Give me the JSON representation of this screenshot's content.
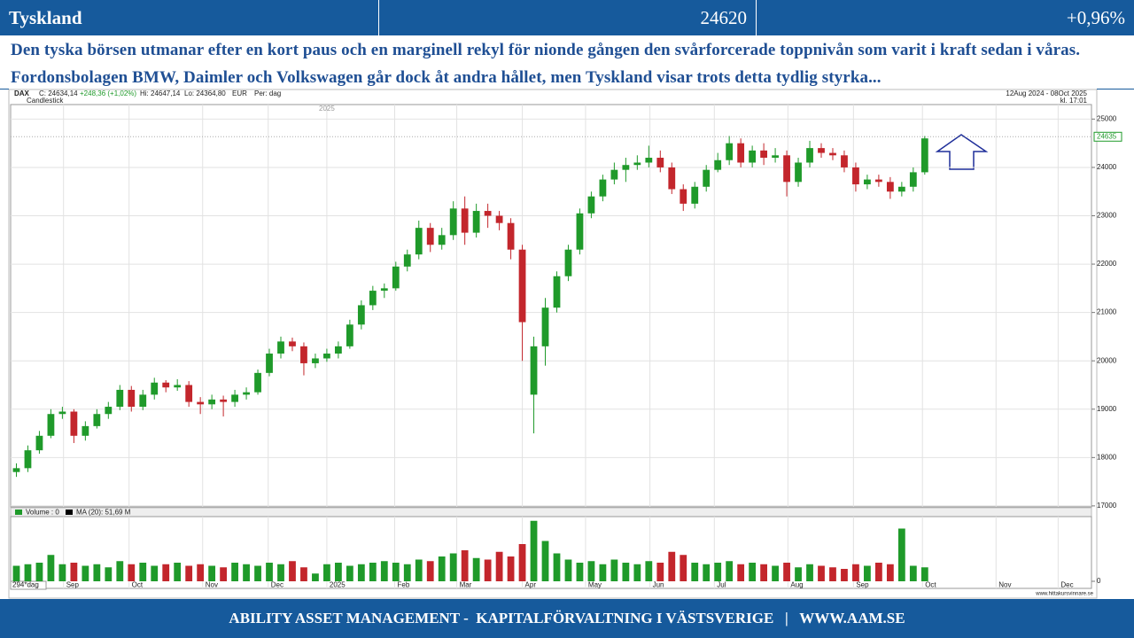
{
  "header": {
    "title": "Tyskland",
    "price": 24620,
    "change": "+0,96%"
  },
  "description": "Den tyska börsen utmanar efter en kort paus och en marginell rekyl för nionde gången den svårforcerade toppnivån som varit i kraft sedan i våras. Fordonsbolagen BMW, Daimler och Volkswagen går dock åt andra hållet, men Tyskland visar trots detta tydlig styrka...",
  "chart_data": {
    "type": "candlestick",
    "instrument": "DAX",
    "quote_close": "C: 24634,14",
    "quote_change": "+248,36 (+1,02%)",
    "quote_high": "Hi: 24647,14",
    "quote_low": "Lo: 24364,80",
    "currency": "EUR",
    "period": "Per: dag",
    "style": "Candlestick",
    "date_range": "12Aug 2024 - 08Oct 2025",
    "time": "kl. 17:01",
    "last_price": 24635,
    "bars_label": "294*dag",
    "source": "www.hittakursvinnare.se",
    "xlim": [
      -0.5,
      93.5
    ],
    "xticks": [
      {
        "value": 4.1,
        "label": "Sep"
      },
      {
        "value": 9.8,
        "label": "Oct"
      },
      {
        "value": 16.2,
        "label": "Nov"
      },
      {
        "value": 21.9,
        "label": "Dec"
      },
      {
        "value": 27.0,
        "label": "2025"
      },
      {
        "value": 32.9,
        "label": "Feb"
      },
      {
        "value": 38.3,
        "label": "Mar"
      },
      {
        "value": 44.0,
        "label": "Apr"
      },
      {
        "value": 49.5,
        "label": "May"
      },
      {
        "value": 55.1,
        "label": "Jun"
      },
      {
        "value": 60.7,
        "label": "Jul"
      },
      {
        "value": 67.1,
        "label": "Aug"
      },
      {
        "value": 72.8,
        "label": "Sep"
      },
      {
        "value": 78.8,
        "label": "Oct"
      },
      {
        "value": 85.2,
        "label": "Nov"
      },
      {
        "value": 90.6,
        "label": "Dec"
      }
    ],
    "ylim": [
      16980,
      25300
    ],
    "yticks": [
      17000,
      18000,
      19000,
      20000,
      21000,
      22000,
      23000,
      24000,
      25000
    ],
    "grid": true,
    "up_color": "#1f9a2a",
    "down_color": "#c3262c",
    "ohlc": {
      "open": [
        17700,
        17780,
        18150,
        18450,
        18900,
        18950,
        18450,
        18650,
        18900,
        19050,
        19400,
        19050,
        19300,
        19550,
        19450,
        19500,
        19150,
        19100,
        19200,
        19150,
        19300,
        19350,
        19750,
        20150,
        20400,
        20300,
        19950,
        20050,
        20150,
        20300,
        20750,
        21150,
        21450,
        21500,
        21950,
        22200,
        22750,
        22400,
        22600,
        23150,
        22650,
        23100,
        23000,
        22850,
        22300,
        19300,
        20300,
        21100,
        21750,
        22300,
        23050,
        23400,
        23750,
        23950,
        24050,
        24100,
        24200,
        24000,
        23550,
        23250,
        23600,
        23950,
        24150,
        24500,
        24100,
        24350,
        24200,
        24250,
        23700,
        24100,
        24400,
        24300,
        24250,
        24000,
        23650,
        23750,
        23700,
        23500,
        23600,
        23900
      ],
      "high": [
        17880,
        18250,
        18550,
        19000,
        19050,
        19000,
        18750,
        19000,
        19150,
        19500,
        19480,
        19400,
        19650,
        19600,
        19620,
        19580,
        19250,
        19300,
        19280,
        19400,
        19450,
        19820,
        20250,
        20500,
        20480,
        20380,
        20150,
        20250,
        20400,
        20850,
        21250,
        21550,
        21600,
        22050,
        22300,
        22900,
        22850,
        22750,
        23300,
        23400,
        23250,
        23250,
        23100,
        22950,
        22400,
        20500,
        21300,
        21850,
        22400,
        23150,
        23500,
        23850,
        24100,
        24200,
        24250,
        24450,
        24350,
        24100,
        23650,
        23700,
        24050,
        24300,
        24650,
        24600,
        24450,
        24500,
        24400,
        24350,
        24200,
        24550,
        24500,
        24400,
        24350,
        24100,
        23850,
        23850,
        23800,
        23700,
        24000,
        24650
      ],
      "low": [
        17600,
        17700,
        18080,
        18400,
        18800,
        18300,
        18350,
        18600,
        18800,
        18980,
        18950,
        18980,
        19200,
        19350,
        19380,
        19050,
        18900,
        19000,
        18850,
        19050,
        19200,
        19300,
        19680,
        20050,
        20200,
        19700,
        19850,
        19980,
        20050,
        20250,
        20650,
        21050,
        21300,
        21450,
        21850,
        22100,
        22250,
        22300,
        22500,
        22400,
        22550,
        22750,
        22700,
        22100,
        20000,
        18500,
        19900,
        21000,
        21650,
        22200,
        22950,
        23300,
        23650,
        23700,
        23950,
        24000,
        23900,
        23450,
        23100,
        23150,
        23500,
        23900,
        24050,
        24000,
        24000,
        24050,
        24100,
        23400,
        23600,
        24000,
        24200,
        24150,
        23900,
        23500,
        23550,
        23600,
        23350,
        23400,
        23500,
        23850
      ],
      "close": [
        17780,
        18150,
        18450,
        18900,
        18950,
        18450,
        18650,
        18900,
        19050,
        19400,
        19050,
        19300,
        19550,
        19450,
        19500,
        19150,
        19100,
        19200,
        19150,
        19300,
        19350,
        19750,
        20150,
        20400,
        20300,
        19950,
        20050,
        20150,
        20300,
        20750,
        21150,
        21450,
        21500,
        21950,
        22200,
        22750,
        22400,
        22600,
        23150,
        22650,
        23100,
        23000,
        22850,
        22300,
        20800,
        20300,
        21100,
        21750,
        22300,
        23050,
        23400,
        23750,
        23950,
        24050,
        24100,
        24200,
        24000,
        23550,
        23250,
        23600,
        23950,
        24150,
        24500,
        24100,
        24350,
        24200,
        24250,
        23700,
        24100,
        24400,
        24300,
        24250,
        24000,
        23650,
        23750,
        23700,
        23500,
        23600,
        23900,
        24600
      ]
    },
    "volume": {
      "label": "Volume : 0",
      "ma_label": "MA (20): 51,69 M",
      "ylim": [
        0,
        200
      ],
      "yticks": [
        0
      ],
      "values": [
        50,
        55,
        60,
        85,
        55,
        60,
        50,
        55,
        45,
        65,
        55,
        60,
        50,
        55,
        60,
        50,
        55,
        50,
        45,
        60,
        55,
        50,
        60,
        55,
        65,
        45,
        25,
        55,
        60,
        50,
        55,
        60,
        65,
        60,
        55,
        70,
        65,
        80,
        90,
        100,
        75,
        70,
        95,
        80,
        120,
        195,
        130,
        90,
        70,
        60,
        65,
        55,
        70,
        60,
        55,
        65,
        60,
        95,
        85,
        60,
        55,
        60,
        65,
        55,
        60,
        55,
        50,
        60,
        45,
        55,
        50,
        45,
        40,
        55,
        50,
        60,
        55,
        170,
        50,
        45
      ]
    }
  },
  "footer": "ABILITY ASSET MANAGEMENT -  KAPITALFÖRVALTNING I VÄSTSVERIGE   |   WWW.AAM.SE"
}
